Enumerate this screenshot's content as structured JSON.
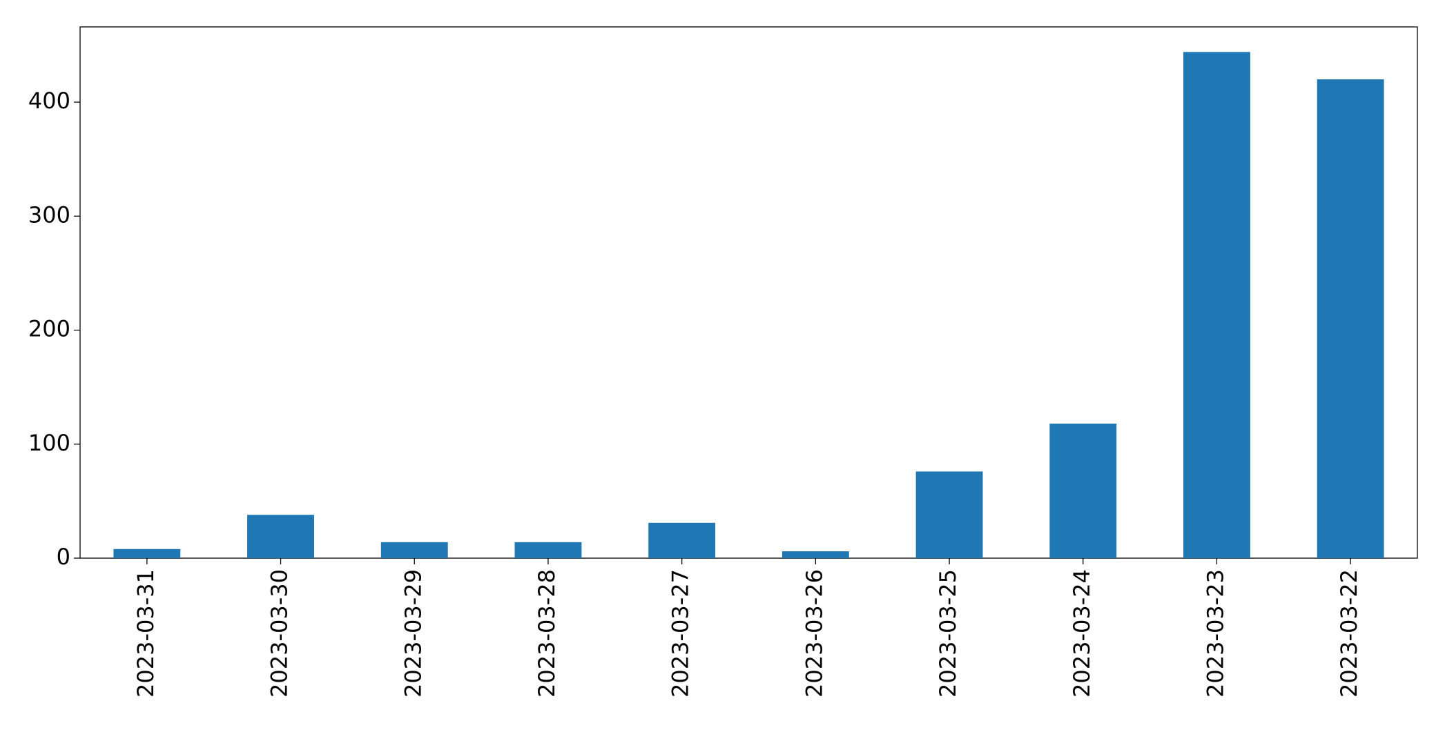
{
  "chart_data": {
    "type": "bar",
    "categories": [
      "2023-03-31",
      "2023-03-30",
      "2023-03-29",
      "2023-03-28",
      "2023-03-27",
      "2023-03-26",
      "2023-03-25",
      "2023-03-24",
      "2023-03-23",
      "2023-03-22"
    ],
    "values": [
      8,
      38,
      14,
      14,
      31,
      6,
      76,
      118,
      444,
      420
    ],
    "color": "#1f77b4",
    "ylim": [
      0,
      466
    ],
    "yticks": [
      0,
      100,
      200,
      300,
      400
    ],
    "grid": false
  }
}
